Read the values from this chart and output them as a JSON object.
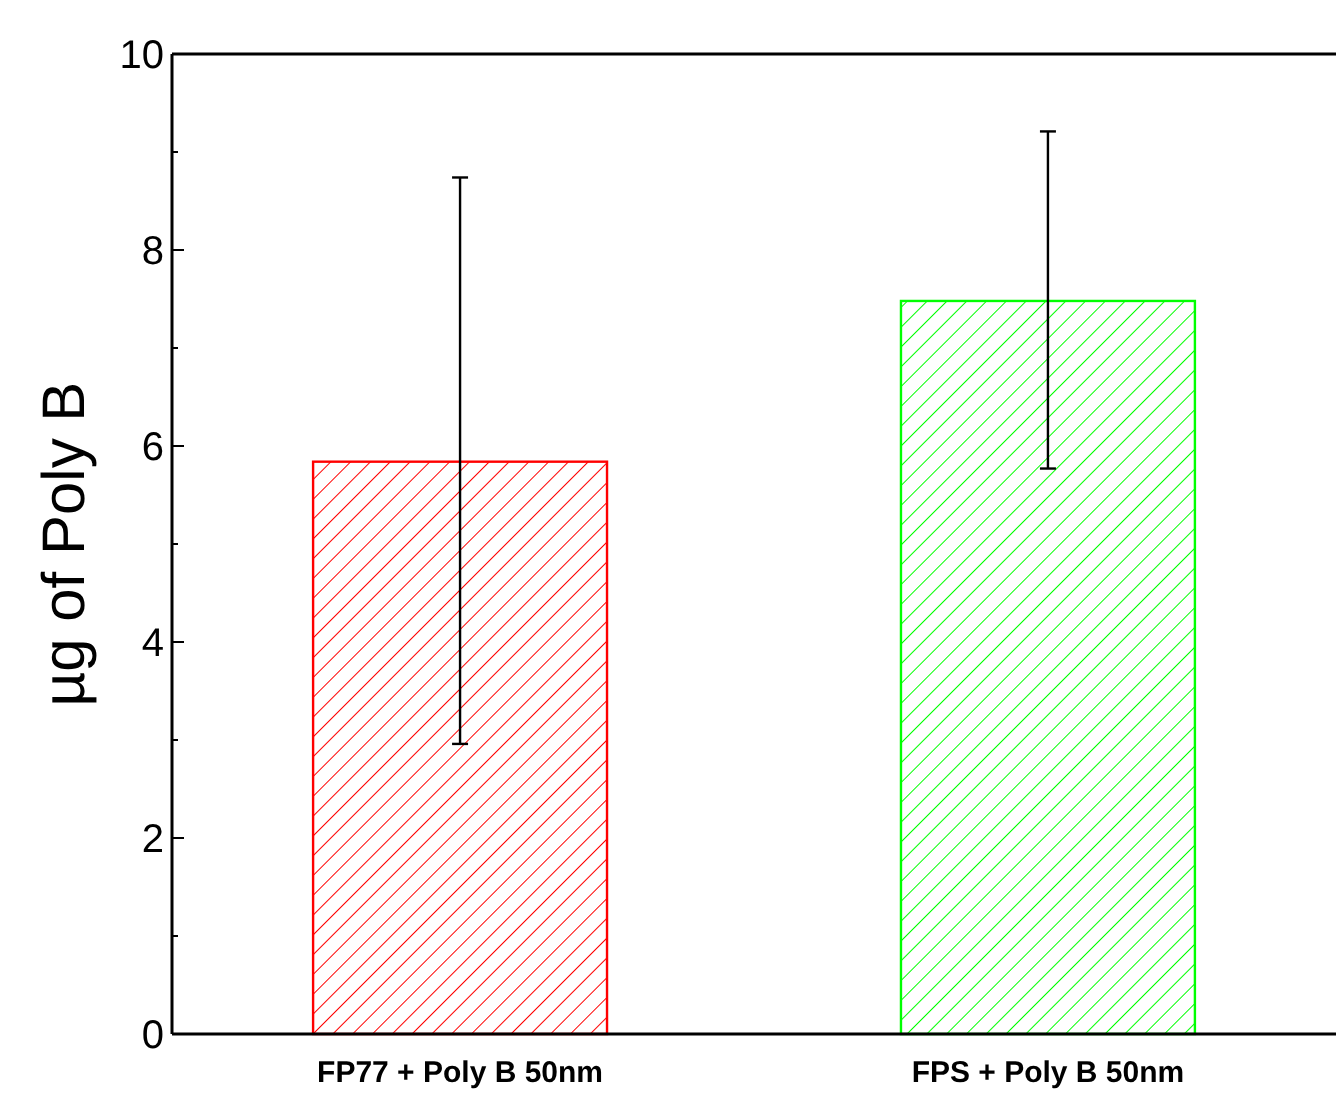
{
  "chart_data": {
    "type": "bar",
    "ylabel": "µg of Poly B",
    "categories": [
      "FP77 + Poly B 50nm",
      "FPS + Poly B 50nm"
    ],
    "values": [
      5.84,
      7.48
    ],
    "colors": [
      "#ff0000",
      "#00ff00"
    ],
    "errors": [
      [
        2.96,
        8.74
      ],
      [
        5.77,
        9.21
      ]
    ],
    "ylim": [
      0,
      10
    ],
    "yticks": [
      0,
      {
        "value": 1,
        "label": null
      },
      2,
      {
        "value": 3,
        "label": null
      },
      4,
      {
        "value": 5,
        "label": null
      },
      6,
      {
        "value": 7,
        "label": null
      },
      8,
      {
        "value": 9,
        "label": null
      },
      10
    ],
    "grid": false
  }
}
